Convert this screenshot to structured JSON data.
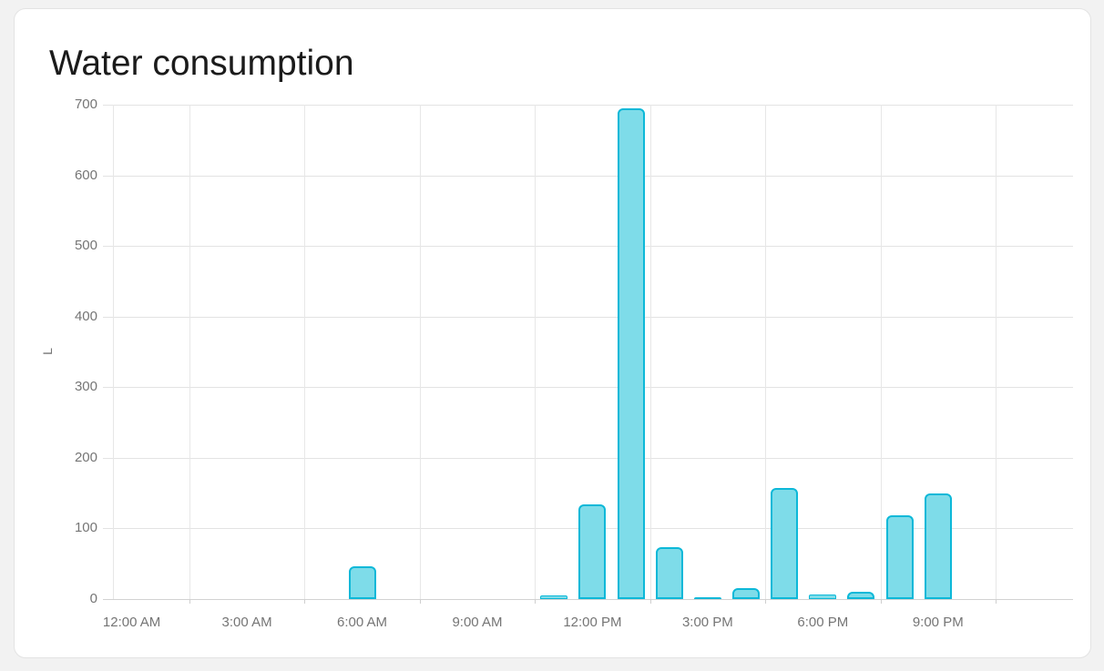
{
  "card": {
    "title": "Water consumption"
  },
  "chart_data": {
    "type": "bar",
    "title": "Water consumption",
    "xlabel": "",
    "ylabel": "L",
    "unit": "L",
    "ylim": [
      0,
      700
    ],
    "y_ticks": [
      0,
      100,
      200,
      300,
      400,
      500,
      600,
      700
    ],
    "x_axis_tick_labels": [
      "12:00 AM",
      "3:00 AM",
      "6:00 AM",
      "9:00 AM",
      "12:00 PM",
      "3:00 PM",
      "6:00 PM",
      "9:00 PM"
    ],
    "categories": [
      "12:00 AM",
      "1:00 AM",
      "2:00 AM",
      "3:00 AM",
      "4:00 AM",
      "5:00 AM",
      "6:00 AM",
      "7:00 AM",
      "8:00 AM",
      "9:00 AM",
      "10:00 AM",
      "11:00 AM",
      "12:00 PM",
      "1:00 PM",
      "2:00 PM",
      "3:00 PM",
      "4:00 PM",
      "5:00 PM",
      "6:00 PM",
      "7:00 PM",
      "8:00 PM",
      "9:00 PM",
      "10:00 PM",
      "11:00 PM"
    ],
    "values": [
      0,
      0,
      0,
      0,
      0,
      0,
      0,
      46,
      0,
      0,
      0,
      0,
      5,
      134,
      695,
      73,
      2,
      15,
      157,
      7,
      10,
      118,
      150,
      0
    ],
    "grid": true,
    "legend_position": "none",
    "colors": {
      "bar_fill": "#7edce9",
      "bar_border": "#0cb8d8",
      "grid_line": "#e3e3e3",
      "axis_text": "#757575",
      "title_text": "#1b1b1b"
    }
  }
}
